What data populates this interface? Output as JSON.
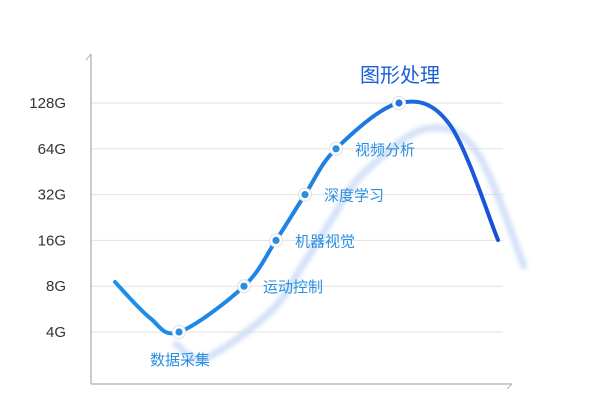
{
  "chart_data": {
    "type": "line",
    "y_scale": "log2",
    "y_ticks": [
      "4G",
      "8G",
      "16G",
      "32G",
      "64G",
      "128G"
    ],
    "ylim": [
      "4G",
      "128G"
    ],
    "grid": true,
    "colors": {
      "line_start": "#1e90e8",
      "line_end": "#1a4fd6",
      "label": "#2a8ee0",
      "highlight_label": "#1a5fd8",
      "shadow": "#c9d9f5"
    },
    "points": [
      {
        "label": "数据采集",
        "value": "4G"
      },
      {
        "label": "运动控制",
        "value": "8G"
      },
      {
        "label": "机器视觉",
        "value": "16G"
      },
      {
        "label": "深度学习",
        "value": "32G"
      },
      {
        "label": "视频分析",
        "value": "64G"
      },
      {
        "label": "图形处理",
        "value": "128G"
      }
    ]
  }
}
